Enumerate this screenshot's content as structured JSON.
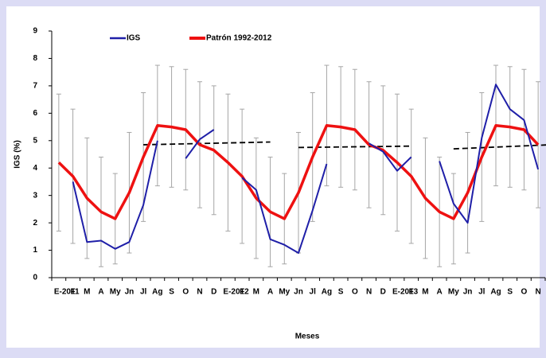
{
  "chart_data": {
    "type": "line",
    "x_label": "Meses",
    "y_label": "IGS (%)",
    "categories": [
      "E-2011",
      "F",
      "M",
      "A",
      "My",
      "Jn",
      "Jl",
      "Ag",
      "S",
      "O",
      "N",
      "D",
      "E-2012",
      "F",
      "M",
      "A",
      "My",
      "Jn",
      "Jl",
      "Ag",
      "S",
      "O",
      "N",
      "D",
      "E-2013",
      "F",
      "M",
      "A",
      "My",
      "Jn",
      "Jl",
      "Ag",
      "S",
      "O",
      "N"
    ],
    "series": [
      {
        "name": "IGS",
        "color": "#1f1fa8",
        "values": [
          null,
          3.5,
          1.3,
          1.35,
          1.05,
          1.3,
          2.65,
          5.0,
          null,
          4.35,
          5.05,
          5.4,
          null,
          3.65,
          3.2,
          1.4,
          1.2,
          0.9,
          2.45,
          4.15,
          null,
          null,
          4.9,
          4.6,
          3.9,
          4.4,
          null,
          4.25,
          2.7,
          2.0,
          5.1,
          7.05,
          6.15,
          5.75,
          3.95
        ]
      },
      {
        "name": "Patrón 1992-2012",
        "color": "#ee1111",
        "values": [
          4.2,
          3.7,
          2.9,
          2.4,
          2.15,
          3.1,
          4.4,
          5.55,
          5.5,
          5.4,
          4.85,
          4.65,
          4.2,
          3.7,
          2.9,
          2.4,
          2.15,
          3.1,
          4.4,
          5.55,
          5.5,
          5.4,
          4.85,
          4.65,
          4.2,
          3.7,
          2.9,
          2.4,
          2.15,
          3.1,
          4.4,
          5.55,
          5.5,
          5.4,
          4.85
        ],
        "errors": [
          2.5,
          2.45,
          2.2,
          2.0,
          1.65,
          2.2,
          2.35,
          2.2,
          2.2,
          2.2,
          2.3,
          2.35,
          2.5,
          2.45,
          2.2,
          2.0,
          1.65,
          2.2,
          2.35,
          2.2,
          2.2,
          2.2,
          2.3,
          2.35,
          2.5,
          2.45,
          2.2,
          2.0,
          1.65,
          2.2,
          2.35,
          2.2,
          2.2,
          2.2,
          2.3
        ]
      }
    ],
    "trend_lines": [
      {
        "start": 6,
        "end": 15,
        "values": [
          4.85,
          4.95
        ]
      },
      {
        "start": 17,
        "end": 25,
        "values": [
          4.75,
          4.8
        ]
      },
      {
        "start": 28,
        "end": 34.9,
        "values": [
          4.7,
          4.85
        ]
      }
    ],
    "error_color": "#a6a6a6",
    "trend_color": "#000000",
    "ylim": [
      0,
      9
    ],
    "yticks": [
      0,
      1,
      2,
      3,
      4,
      5,
      6,
      7,
      8,
      9
    ]
  }
}
